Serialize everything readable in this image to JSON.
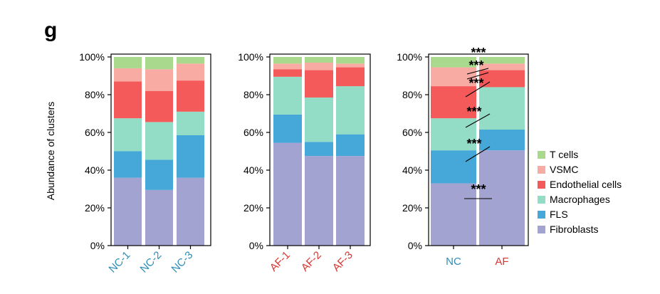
{
  "panel_label": "g",
  "colors": {
    "Fibroblasts": "#a3a3d1",
    "FLS": "#45a8d8",
    "Macrophages": "#93dcc5",
    "Endothelial cells": "#f55a5a",
    "VSMC": "#f8aba3",
    "T cells": "#a8d98d",
    "nc_label": "#2e8db8",
    "af_label": "#d8352f"
  },
  "legend_order": [
    "T cells",
    "VSMC",
    "Endothelial cells",
    "Macrophages",
    "FLS",
    "Fibroblasts"
  ],
  "chart_data": [
    {
      "type": "bar",
      "stacked": true,
      "ylabel": "Abundance of clusters",
      "ylim": [
        0,
        100
      ],
      "yticks": [
        "0%",
        "20%",
        "40%",
        "60%",
        "80%",
        "100%"
      ],
      "categories": [
        "NC-1",
        "NC-2",
        "NC-3"
      ],
      "category_color": "nc_label",
      "series": [
        {
          "name": "Fibroblasts",
          "values": [
            36,
            29.5,
            36
          ]
        },
        {
          "name": "FLS",
          "values": [
            14,
            16,
            22.5
          ]
        },
        {
          "name": "Macrophages",
          "values": [
            17.5,
            20,
            12.5
          ]
        },
        {
          "name": "Endothelial cells",
          "values": [
            19.5,
            16.5,
            16.5
          ]
        },
        {
          "name": "VSMC",
          "values": [
            7,
            11.5,
            9
          ]
        },
        {
          "name": "T cells",
          "values": [
            6,
            6.5,
            3.5
          ]
        }
      ]
    },
    {
      "type": "bar",
      "stacked": true,
      "ylim": [
        0,
        100
      ],
      "yticks": [
        "0%",
        "20%",
        "40%",
        "60%",
        "80%",
        "100%"
      ],
      "categories": [
        "AF-1",
        "AF-2",
        "AF-3"
      ],
      "category_color": "af_label",
      "series": [
        {
          "name": "Fibroblasts",
          "values": [
            54.5,
            47.5,
            47.5
          ]
        },
        {
          "name": "FLS",
          "values": [
            15,
            7.5,
            11.5
          ]
        },
        {
          "name": "Macrophages",
          "values": [
            20,
            23.5,
            25.5
          ]
        },
        {
          "name": "Endothelial cells",
          "values": [
            4,
            14.5,
            10
          ]
        },
        {
          "name": "VSMC",
          "values": [
            3,
            4,
            2
          ]
        },
        {
          "name": "T cells",
          "values": [
            3.5,
            3,
            3.5
          ]
        }
      ]
    },
    {
      "type": "bar",
      "stacked": true,
      "ylim": [
        0,
        100
      ],
      "yticks": [
        "0%",
        "20%",
        "40%",
        "60%",
        "80%",
        "100%"
      ],
      "categories": [
        "NC",
        "AF"
      ],
      "category_colors": [
        "nc_label",
        "af_label"
      ],
      "series": [
        {
          "name": "Fibroblasts",
          "values": [
            33,
            50.5
          ]
        },
        {
          "name": "FLS",
          "values": [
            17.5,
            11
          ]
        },
        {
          "name": "Macrophages",
          "values": [
            17,
            22.5
          ]
        },
        {
          "name": "Endothelial cells",
          "values": [
            17,
            9
          ]
        },
        {
          "name": "VSMC",
          "values": [
            10,
            3.5
          ]
        },
        {
          "name": "T cells",
          "values": [
            5.5,
            3.5
          ]
        }
      ],
      "annotations": [
        "***",
        "***",
        "***",
        "***",
        "***",
        "***"
      ]
    }
  ]
}
